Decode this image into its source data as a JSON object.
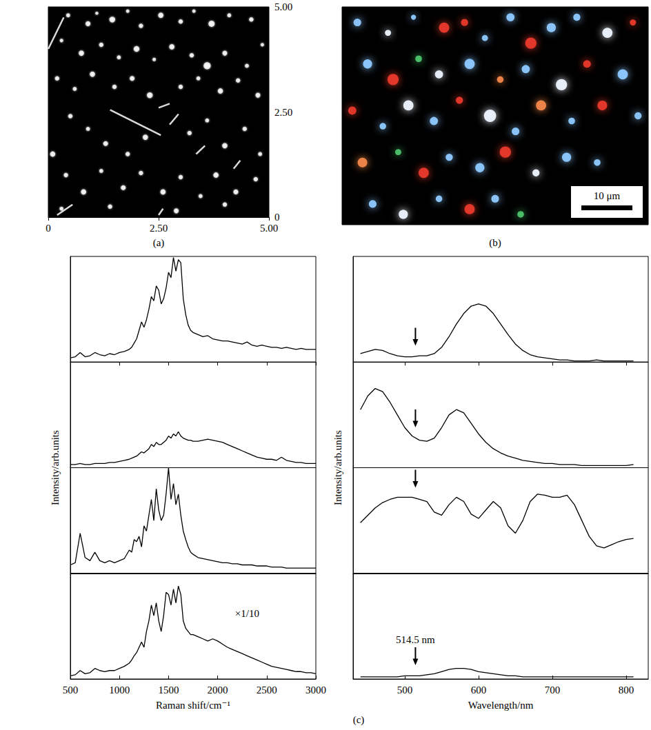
{
  "chart_data": [
    {
      "type": "scatter",
      "panel": "(a)",
      "color": "#ffffff",
      "xlim": [
        0,
        5
      ],
      "xticks": [
        {
          "value": 0,
          "label": "0"
        },
        {
          "value": 2.5,
          "label": "2.50"
        },
        {
          "value": 5,
          "label": "5.00"
        }
      ],
      "ylim": [
        0,
        5
      ],
      "yticks": [
        {
          "value": 0,
          "label": "0"
        },
        {
          "value": 2.5,
          "label": "2.50"
        },
        {
          "value": 5,
          "label": "5.00"
        }
      ],
      "points": [
        [
          0.45,
          4.8,
          0.09
        ],
        [
          0.9,
          4.6,
          0.11
        ],
        [
          1.1,
          4.85,
          0.07
        ],
        [
          1.45,
          4.7,
          0.13
        ],
        [
          1.8,
          4.9,
          0.08
        ],
        [
          2.1,
          4.55,
          0.1
        ],
        [
          2.55,
          4.8,
          0.12
        ],
        [
          3.0,
          4.65,
          0.1
        ],
        [
          3.3,
          4.9,
          0.08
        ],
        [
          3.7,
          4.6,
          0.14
        ],
        [
          4.1,
          4.8,
          0.09
        ],
        [
          4.6,
          4.7,
          0.1
        ],
        [
          0.3,
          4.2,
          0.08
        ],
        [
          0.75,
          3.9,
          0.12
        ],
        [
          1.2,
          4.1,
          0.1
        ],
        [
          1.6,
          3.8,
          0.09
        ],
        [
          2.0,
          4.0,
          0.13
        ],
        [
          2.4,
          3.75,
          0.08
        ],
        [
          2.8,
          4.05,
          0.12
        ],
        [
          3.25,
          3.85,
          0.1
        ],
        [
          3.6,
          3.6,
          0.16
        ],
        [
          4.0,
          3.9,
          0.11
        ],
        [
          4.5,
          3.6,
          0.09
        ],
        [
          4.85,
          4.1,
          0.08
        ],
        [
          0.2,
          3.3,
          0.1
        ],
        [
          0.6,
          3.05,
          0.09
        ],
        [
          1.0,
          3.4,
          0.12
        ],
        [
          1.5,
          3.1,
          0.1
        ],
        [
          1.9,
          3.3,
          0.11
        ],
        [
          2.3,
          2.9,
          0.13
        ],
        [
          3.0,
          3.1,
          0.1
        ],
        [
          3.4,
          3.3,
          0.09
        ],
        [
          3.9,
          3.0,
          0.12
        ],
        [
          4.3,
          3.25,
          0.1
        ],
        [
          4.75,
          2.9,
          0.11
        ],
        [
          0.1,
          1.5,
          0.12
        ],
        [
          0.5,
          2.4,
          0.1
        ],
        [
          0.9,
          2.1,
          0.09
        ],
        [
          1.3,
          1.75,
          0.11
        ],
        [
          1.8,
          1.5,
          0.1
        ],
        [
          2.2,
          1.9,
          0.12
        ],
        [
          3.2,
          2.0,
          0.1
        ],
        [
          3.6,
          2.3,
          0.09
        ],
        [
          4.0,
          1.7,
          0.12
        ],
        [
          4.45,
          2.1,
          0.1
        ],
        [
          4.8,
          1.5,
          0.09
        ],
        [
          0.4,
          1.0,
          0.1
        ],
        [
          0.8,
          0.6,
          0.12
        ],
        [
          1.2,
          1.1,
          0.09
        ],
        [
          1.7,
          0.7,
          0.11
        ],
        [
          2.1,
          1.05,
          0.1
        ],
        [
          2.6,
          0.6,
          0.12
        ],
        [
          3.0,
          0.95,
          0.1
        ],
        [
          3.45,
          0.5,
          0.09
        ],
        [
          3.8,
          1.0,
          0.12
        ],
        [
          4.25,
          0.6,
          0.11
        ],
        [
          4.7,
          0.9,
          0.1
        ],
        [
          0.3,
          0.2,
          0.09
        ],
        [
          1.4,
          0.25,
          0.1
        ],
        [
          2.9,
          0.15,
          0.11
        ],
        [
          4.0,
          0.3,
          0.1
        ]
      ],
      "segments": [
        [
          0.0,
          4.0,
          0.35,
          4.75
        ],
        [
          1.4,
          2.55,
          2.55,
          1.95
        ],
        [
          2.75,
          2.2,
          2.95,
          2.45
        ],
        [
          3.35,
          1.5,
          3.55,
          1.7
        ],
        [
          0.2,
          0.05,
          0.55,
          0.3
        ],
        [
          2.5,
          0.05,
          2.6,
          0.2
        ],
        [
          4.2,
          1.15,
          4.35,
          1.35
        ],
        [
          2.5,
          2.6,
          2.75,
          2.7
        ]
      ]
    },
    {
      "type": "scatter",
      "panel": "(b)",
      "tick_labels": false,
      "xlim": [
        0,
        60
      ],
      "ylim": [
        0,
        42
      ],
      "points": [
        [
          3,
          39,
          1.5
        ],
        [
          9,
          37,
          1.2
        ],
        [
          14,
          40,
          1.0
        ],
        [
          20,
          38,
          2.0
        ],
        [
          24,
          39,
          1.4
        ],
        [
          28,
          36,
          1.2
        ],
        [
          33,
          40,
          1.6
        ],
        [
          37,
          35,
          2.2
        ],
        [
          41,
          38,
          1.8
        ],
        [
          46,
          40,
          1.4
        ],
        [
          52,
          37,
          2.0
        ],
        [
          57,
          39,
          1.2
        ],
        [
          5,
          31,
          1.8
        ],
        [
          10,
          28,
          2.2
        ],
        [
          15,
          32,
          1.3
        ],
        [
          19,
          29,
          1.6
        ],
        [
          25,
          31,
          2.0
        ],
        [
          31,
          28,
          1.3
        ],
        [
          36,
          30,
          1.6
        ],
        [
          43,
          27,
          2.2
        ],
        [
          48,
          31,
          1.5
        ],
        [
          55,
          29,
          2.0
        ],
        [
          2,
          22,
          1.6
        ],
        [
          8,
          19,
          1.3
        ],
        [
          13,
          23,
          2.0
        ],
        [
          18,
          20,
          1.6
        ],
        [
          23,
          24,
          1.4
        ],
        [
          29,
          21,
          2.4
        ],
        [
          34,
          18,
          1.5
        ],
        [
          39,
          23,
          2.0
        ],
        [
          45,
          20,
          1.3
        ],
        [
          51,
          23,
          1.9
        ],
        [
          58,
          21,
          1.4
        ],
        [
          4,
          12,
          1.9
        ],
        [
          11,
          14,
          1.2
        ],
        [
          16,
          10,
          2.0
        ],
        [
          21,
          13,
          1.4
        ],
        [
          27,
          11,
          1.8
        ],
        [
          32,
          14,
          2.2
        ],
        [
          38,
          10,
          1.4
        ],
        [
          44,
          13,
          1.8
        ],
        [
          50,
          12,
          1.3
        ],
        [
          6,
          4,
          1.5
        ],
        [
          12,
          2,
          1.8
        ],
        [
          19,
          5,
          1.3
        ],
        [
          25,
          3,
          2.0
        ],
        [
          30,
          5,
          1.5
        ],
        [
          35,
          2,
          1.3
        ]
      ],
      "colors": [
        "#8ec9ff",
        "#eef4ff",
        "#8ec9ff",
        "#e8392a",
        "#e8392a",
        "#8ec9ff",
        "#8ec9ff",
        "#e8392a",
        "#8ec9ff",
        "#8ec9ff",
        "#eef4ff",
        "#e8392a",
        "#8ec9ff",
        "#e8392a",
        "#4cc46a",
        "#eef4ff",
        "#8ec9ff",
        "#f2874a",
        "#8ec9ff",
        "#eef4ff",
        "#e8392a",
        "#8ec9ff",
        "#e8392a",
        "#8ec9ff",
        "#eef4ff",
        "#8ec9ff",
        "#e8392a",
        "#eef4ff",
        "#8ec9ff",
        "#f2874a",
        "#8ec9ff",
        "#e8392a",
        "#8ec9ff",
        "#f2874a",
        "#4cc46a",
        "#e8392a",
        "#8ec9ff",
        "#8ec9ff",
        "#e8392a",
        "#eef4ff",
        "#8ec9ff",
        "#8ec9ff",
        "#8ec9ff",
        "#eef4ff",
        "#8ec9ff",
        "#e8392a",
        "#8ec9ff",
        "#4cc46a"
      ],
      "scale_bar": {
        "length": 10,
        "label": "10 μm"
      }
    },
    {
      "type": "line",
      "color": "#000000",
      "tick_labels": "x",
      "x_label": "Raman shift/cm⁻¹",
      "y_label": "Intensity/arb.units",
      "xlim": [
        500,
        3000
      ],
      "xticks": [
        500,
        1000,
        1500,
        2000,
        2500,
        3000
      ],
      "ylim": [
        0,
        100
      ],
      "x": [
        500,
        550,
        600,
        650,
        700,
        750,
        800,
        850,
        900,
        950,
        1000,
        1050,
        1100,
        1125,
        1150,
        1175,
        1200,
        1225,
        1250,
        1275,
        1300,
        1325,
        1350,
        1375,
        1400,
        1425,
        1450,
        1475,
        1500,
        1525,
        1550,
        1575,
        1600,
        1625,
        1650,
        1675,
        1700,
        1725,
        1750,
        1800,
        1850,
        1900,
        1950,
        2000,
        2050,
        2100,
        2150,
        2200,
        2250,
        2300,
        2350,
        2400,
        2450,
        2500,
        2550,
        2600,
        2650,
        2700,
        2750,
        2800,
        2850,
        2900,
        2950,
        3000
      ],
      "series": [
        {
          "values": [
            4,
            5,
            9,
            5,
            6,
            9,
            7,
            6,
            8,
            7,
            9,
            10,
            12,
            14,
            18,
            22,
            30,
            38,
            33,
            40,
            50,
            62,
            58,
            72,
            68,
            55,
            60,
            70,
            85,
            80,
            99,
            86,
            97,
            94,
            60,
            45,
            35,
            30,
            28,
            26,
            24,
            25,
            22,
            21,
            20,
            20,
            19,
            18,
            17,
            19,
            16,
            15,
            16,
            15,
            14,
            14,
            13,
            14,
            13,
            12,
            13,
            12,
            12,
            12
          ]
        },
        {
          "values": [
            3,
            3,
            4,
            3,
            3,
            4,
            4,
            4,
            5,
            5,
            6,
            7,
            8,
            9,
            10,
            11,
            13,
            15,
            14,
            16,
            18,
            22,
            20,
            24,
            22,
            22,
            24,
            26,
            30,
            28,
            32,
            30,
            34,
            30,
            28,
            27,
            26,
            26,
            25,
            25,
            26,
            27,
            26,
            25,
            24,
            22,
            20,
            18,
            16,
            14,
            12,
            10,
            9,
            8,
            8,
            7,
            10,
            7,
            6,
            5,
            5,
            4,
            4,
            4
          ]
        },
        {
          "values": [
            8,
            10,
            38,
            15,
            12,
            20,
            12,
            10,
            12,
            10,
            12,
            14,
            22,
            20,
            32,
            30,
            35,
            25,
            45,
            40,
            55,
            70,
            50,
            80,
            60,
            50,
            55,
            75,
            100,
            70,
            85,
            65,
            75,
            55,
            40,
            32,
            25,
            20,
            18,
            15,
            14,
            13,
            12,
            11,
            10,
            10,
            9,
            9,
            8,
            8,
            8,
            7,
            7,
            7,
            6,
            6,
            6,
            5,
            5,
            5,
            5,
            5,
            5,
            5
          ]
        },
        {
          "values": [
            3,
            4,
            8,
            5,
            6,
            10,
            8,
            7,
            8,
            8,
            10,
            12,
            15,
            18,
            22,
            25,
            30,
            35,
            30,
            45,
            55,
            70,
            60,
            72,
            55,
            45,
            60,
            82,
            80,
            70,
            85,
            72,
            88,
            80,
            55,
            48,
            45,
            42,
            42,
            40,
            38,
            36,
            38,
            36,
            33,
            30,
            28,
            26,
            24,
            22,
            20,
            18,
            16,
            14,
            12,
            11,
            10,
            9,
            8,
            7,
            7,
            6,
            6,
            5
          ],
          "annotation": "×1/10"
        }
      ]
    },
    {
      "type": "line",
      "color": "#000000",
      "tick_labels": "x",
      "x_label": "Wavelength/nm",
      "y_label": "Intensity/arb.units",
      "xlim": [
        430,
        830
      ],
      "xticks": [
        500,
        600,
        700,
        800
      ],
      "ylim": [
        0,
        100
      ],
      "arrow_x": 514.5,
      "x": [
        440,
        450,
        460,
        470,
        480,
        490,
        500,
        510,
        520,
        530,
        540,
        550,
        560,
        570,
        580,
        590,
        600,
        610,
        620,
        630,
        640,
        650,
        660,
        670,
        680,
        690,
        700,
        710,
        720,
        730,
        740,
        750,
        760,
        770,
        780,
        790,
        800,
        810
      ],
      "series": [
        {
          "values": [
            8,
            10,
            12,
            11,
            8,
            6,
            5,
            5,
            6,
            6,
            8,
            14,
            24,
            36,
            46,
            53,
            55,
            53,
            46,
            36,
            26,
            17,
            11,
            7,
            5,
            4,
            3,
            2,
            2,
            1,
            1,
            1,
            2,
            1,
            1,
            1,
            1,
            1
          ]
        },
        {
          "values": [
            55,
            68,
            75,
            72,
            62,
            50,
            38,
            30,
            26,
            25,
            28,
            38,
            50,
            55,
            52,
            42,
            32,
            24,
            18,
            14,
            11,
            9,
            7,
            6,
            5,
            4,
            4,
            3,
            3,
            3,
            2,
            2,
            2,
            2,
            2,
            2,
            2,
            3
          ]
        },
        {
          "values": [
            48,
            55,
            62,
            67,
            70,
            72,
            72,
            72,
            70,
            68,
            58,
            55,
            65,
            72,
            68,
            56,
            52,
            60,
            68,
            62,
            45,
            38,
            50,
            68,
            75,
            74,
            72,
            72,
            74,
            65,
            50,
            35,
            26,
            24,
            27,
            30,
            32,
            33
          ]
        },
        {
          "values": [
            2,
            2,
            2,
            2,
            2,
            2,
            3,
            3,
            3,
            4,
            5,
            7,
            9,
            10,
            10,
            9,
            7,
            6,
            5,
            4,
            3,
            3,
            2,
            2,
            2,
            2,
            2,
            2,
            2,
            2,
            2,
            2,
            2,
            2,
            2,
            2,
            2,
            2
          ],
          "arrow_label": "514.5 nm"
        }
      ]
    }
  ],
  "group_label": "(c)"
}
